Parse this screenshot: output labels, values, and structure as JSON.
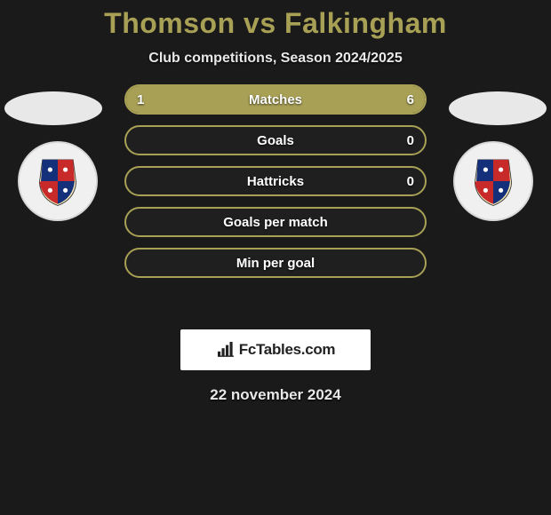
{
  "title": "Thomson vs Falkingham",
  "subtitle": "Club competitions, Season 2024/2025",
  "date": "22 november 2024",
  "brand": {
    "text": "FcTables.com"
  },
  "colors": {
    "accent": "#a8a055",
    "bg": "#1a1a1a",
    "bar_border": "#a8a055",
    "bar_bg": "#1f1f1f",
    "text_light": "#e8e8e8",
    "white": "#ffffff"
  },
  "crest": {
    "quadrants": [
      "#14307a",
      "#c82a2a",
      "#c82a2a",
      "#14307a"
    ],
    "inner_bg": "#f3e7b6"
  },
  "stats": {
    "rows": [
      {
        "label": "Matches",
        "left": "1",
        "right": "6",
        "left_pct": 14,
        "right_pct": 86
      },
      {
        "label": "Goals",
        "left": "",
        "right": "0",
        "left_pct": 0,
        "right_pct": 0
      },
      {
        "label": "Hattricks",
        "left": "",
        "right": "0",
        "left_pct": 0,
        "right_pct": 0
      },
      {
        "label": "Goals per match",
        "left": "",
        "right": "",
        "left_pct": 0,
        "right_pct": 0
      },
      {
        "label": "Min per goal",
        "left": "",
        "right": "",
        "left_pct": 0,
        "right_pct": 0
      }
    ]
  }
}
